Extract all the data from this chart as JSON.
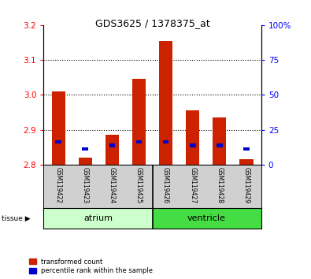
{
  "title": "GDS3625 / 1378375_at",
  "samples": [
    "GSM119422",
    "GSM119423",
    "GSM119424",
    "GSM119425",
    "GSM119426",
    "GSM119427",
    "GSM119428",
    "GSM119429"
  ],
  "red_values": [
    3.01,
    2.82,
    2.885,
    3.045,
    3.155,
    2.955,
    2.935,
    2.815
  ],
  "blue_values": [
    2.865,
    2.845,
    2.855,
    2.865,
    2.865,
    2.855,
    2.855,
    2.845
  ],
  "ylim_left": [
    2.8,
    3.2
  ],
  "yticks_left": [
    2.8,
    2.9,
    3.0,
    3.1,
    3.2
  ],
  "yticks_right": [
    0,
    25,
    50,
    75,
    100
  ],
  "ytick_labels_right": [
    "0",
    "25",
    "50",
    "75",
    "100%"
  ],
  "bar_bottom": 2.8,
  "bar_color_red": "#cc2200",
  "bar_color_blue": "#0000cc",
  "bar_width": 0.5,
  "atrium_color": "#ccffcc",
  "ventricle_color": "#44dd44",
  "n_atrium": 4,
  "n_ventricle": 4
}
